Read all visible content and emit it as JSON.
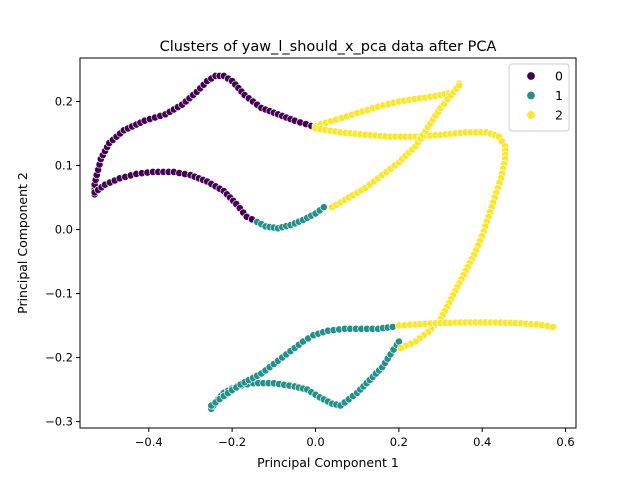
{
  "chart_data": {
    "type": "scatter",
    "title": "Clusters of yaw_l_should_x_pca data after PCA",
    "xlabel": "Principal Component 1",
    "ylabel": "Principal Component 2",
    "xlim": [
      -0.565,
      0.625
    ],
    "ylim": [
      -0.31,
      0.268
    ],
    "xticks": [
      -0.4,
      -0.2,
      0.0,
      0.2,
      0.4,
      0.6
    ],
    "xtick_labels": [
      "−0.4",
      "−0.2",
      "0.0",
      "0.2",
      "0.4",
      "0.6"
    ],
    "yticks": [
      -0.3,
      -0.2,
      -0.1,
      0.0,
      0.1,
      0.2
    ],
    "ytick_labels": [
      "−0.3",
      "−0.2",
      "−0.1",
      "0.0",
      "0.1",
      "0.2"
    ],
    "grid": false,
    "legend_position": "top-right",
    "series": [
      {
        "name": "0",
        "color": "#440154",
        "paths": [
          [
            [
              -0.53,
              0.055
            ],
            [
              -0.53,
              0.07
            ],
            [
              -0.525,
              0.085
            ],
            [
              -0.515,
              0.11
            ],
            [
              -0.495,
              0.135
            ],
            [
              -0.46,
              0.155
            ],
            [
              -0.41,
              0.17
            ],
            [
              -0.36,
              0.18
            ],
            [
              -0.32,
              0.195
            ],
            [
              -0.285,
              0.215
            ],
            [
              -0.26,
              0.232
            ],
            [
              -0.24,
              0.24
            ],
            [
              -0.22,
              0.24
            ],
            [
              -0.2,
              0.232
            ],
            [
              -0.17,
              0.21
            ],
            [
              -0.13,
              0.19
            ],
            [
              -0.09,
              0.18
            ],
            [
              -0.05,
              0.17
            ],
            [
              -0.01,
              0.162
            ]
          ],
          [
            [
              -0.53,
              0.058
            ],
            [
              -0.505,
              0.07
            ],
            [
              -0.47,
              0.08
            ],
            [
              -0.43,
              0.087
            ],
            [
              -0.39,
              0.09
            ],
            [
              -0.34,
              0.09
            ],
            [
              -0.3,
              0.085
            ],
            [
              -0.26,
              0.075
            ],
            [
              -0.22,
              0.06
            ],
            [
              -0.19,
              0.04
            ],
            [
              -0.165,
              0.02
            ],
            [
              -0.14,
              0.012
            ]
          ]
        ]
      },
      {
        "name": "1",
        "color": "#21918c",
        "paths": [
          [
            [
              -0.14,
              0.012
            ],
            [
              -0.12,
              0.005
            ],
            [
              -0.09,
              0.002
            ],
            [
              -0.06,
              0.007
            ],
            [
              -0.03,
              0.015
            ],
            [
              0.0,
              0.025
            ],
            [
              0.02,
              0.035
            ]
          ],
          [
            [
              -0.25,
              -0.28
            ],
            [
              -0.24,
              -0.27
            ],
            [
              -0.22,
              -0.255
            ],
            [
              -0.19,
              -0.245
            ],
            [
              -0.15,
              -0.24
            ],
            [
              -0.1,
              -0.24
            ],
            [
              -0.05,
              -0.245
            ],
            [
              -0.02,
              -0.25
            ],
            [
              0.01,
              -0.262
            ],
            [
              0.04,
              -0.272
            ],
            [
              0.06,
              -0.275
            ],
            [
              0.08,
              -0.265
            ],
            [
              0.1,
              -0.255
            ],
            [
              0.13,
              -0.235
            ],
            [
              0.16,
              -0.215
            ],
            [
              0.18,
              -0.195
            ],
            [
              0.195,
              -0.18
            ],
            [
              0.2,
              -0.175
            ]
          ],
          [
            [
              -0.25,
              -0.275
            ],
            [
              -0.22,
              -0.26
            ],
            [
              -0.18,
              -0.242
            ],
            [
              -0.13,
              -0.225
            ],
            [
              -0.09,
              -0.205
            ],
            [
              -0.06,
              -0.19
            ],
            [
              -0.03,
              -0.175
            ],
            [
              -0.005,
              -0.165
            ],
            [
              0.03,
              -0.158
            ],
            [
              0.07,
              -0.155
            ],
            [
              0.11,
              -0.155
            ],
            [
              0.15,
              -0.155
            ],
            [
              0.185,
              -0.152
            ],
            [
              0.2,
              -0.15
            ]
          ]
        ]
      },
      {
        "name": "2",
        "color": "#fde725",
        "paths": [
          [
            [
              0.0,
              0.162
            ],
            [
              0.05,
              0.172
            ],
            [
              0.1,
              0.182
            ],
            [
              0.15,
              0.192
            ],
            [
              0.2,
              0.2
            ],
            [
              0.25,
              0.205
            ],
            [
              0.3,
              0.21
            ],
            [
              0.33,
              0.215
            ],
            [
              0.345,
              0.228
            ]
          ],
          [
            [
              0.0,
              0.158
            ],
            [
              0.06,
              0.152
            ],
            [
              0.12,
              0.148
            ],
            [
              0.18,
              0.145
            ],
            [
              0.24,
              0.145
            ],
            [
              0.3,
              0.148
            ],
            [
              0.36,
              0.152
            ],
            [
              0.41,
              0.152
            ],
            [
              0.44,
              0.145
            ],
            [
              0.455,
              0.13
            ],
            [
              0.455,
              0.11
            ],
            [
              0.445,
              0.08
            ],
            [
              0.43,
              0.05
            ],
            [
              0.415,
              0.02
            ],
            [
              0.4,
              -0.01
            ],
            [
              0.38,
              -0.04
            ],
            [
              0.36,
              -0.065
            ],
            [
              0.34,
              -0.09
            ],
            [
              0.32,
              -0.115
            ],
            [
              0.3,
              -0.14
            ],
            [
              0.27,
              -0.16
            ],
            [
              0.24,
              -0.175
            ],
            [
              0.205,
              -0.185
            ]
          ],
          [
            [
              0.04,
              0.035
            ],
            [
              0.08,
              0.05
            ],
            [
              0.12,
              0.065
            ],
            [
              0.16,
              0.085
            ],
            [
              0.2,
              0.105
            ],
            [
              0.24,
              0.13
            ],
            [
              0.27,
              0.16
            ],
            [
              0.3,
              0.19
            ],
            [
              0.325,
              0.21
            ],
            [
              0.345,
              0.225
            ]
          ],
          [
            [
              0.2,
              -0.15
            ],
            [
              0.24,
              -0.148
            ],
            [
              0.3,
              -0.146
            ],
            [
              0.36,
              -0.145
            ],
            [
              0.42,
              -0.145
            ],
            [
              0.48,
              -0.146
            ],
            [
              0.53,
              -0.148
            ],
            [
              0.57,
              -0.152
            ]
          ]
        ]
      }
    ]
  }
}
